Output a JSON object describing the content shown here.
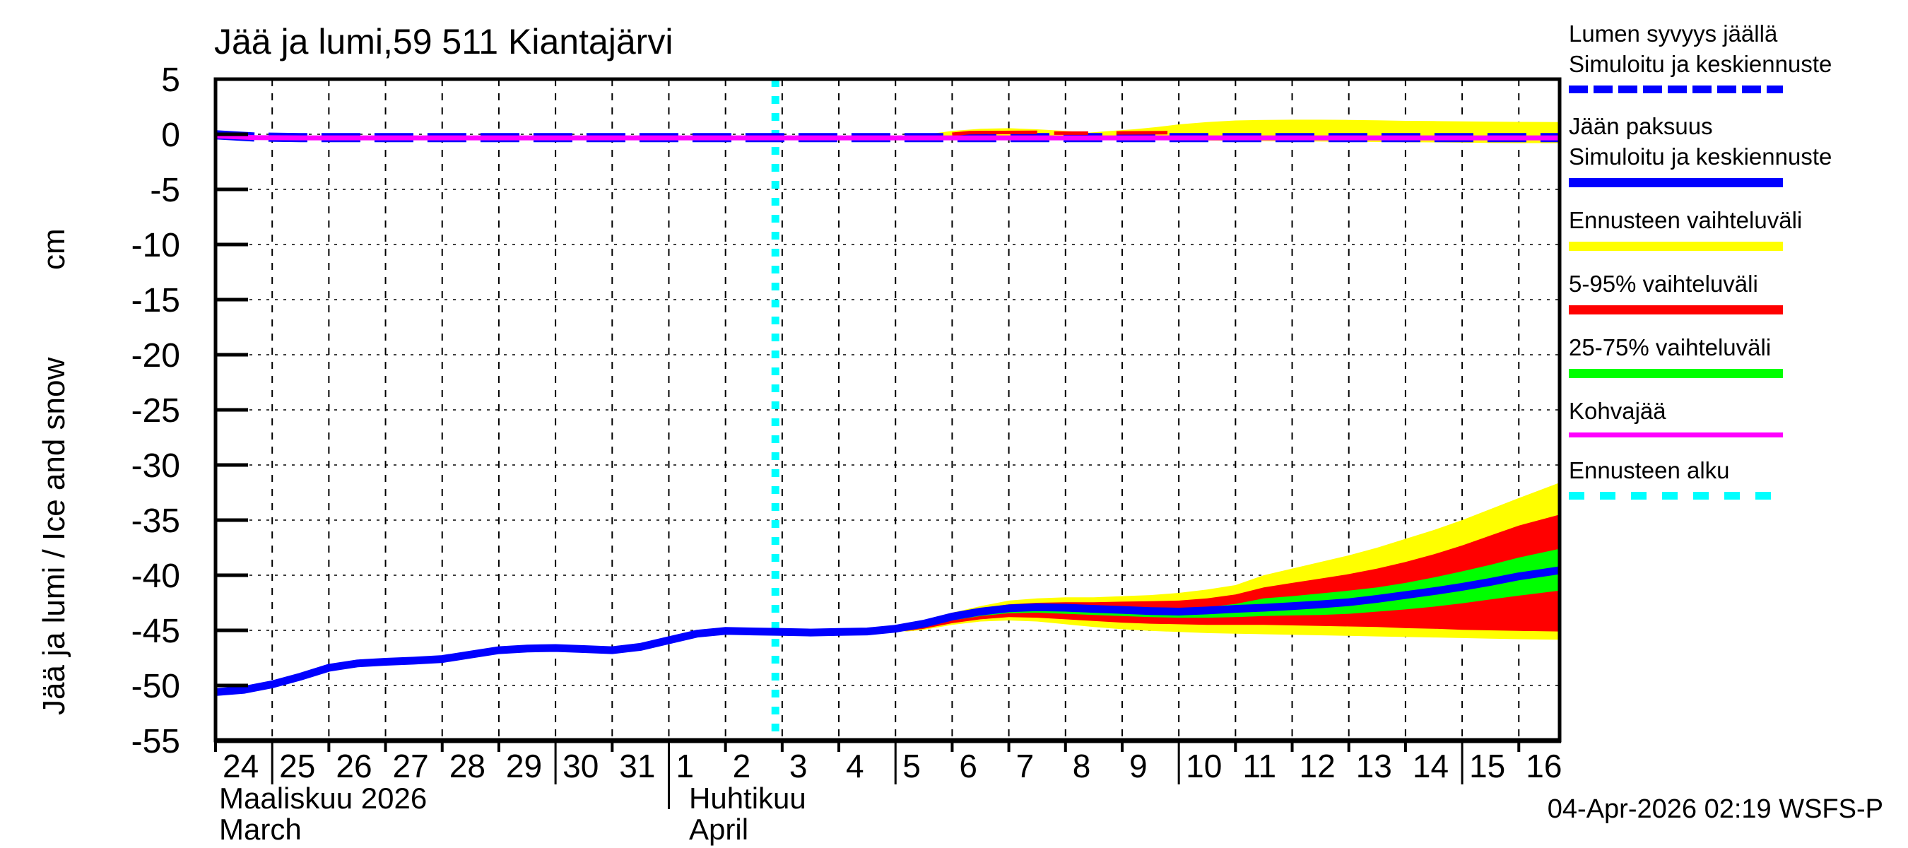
{
  "title": "Jää ja lumi,59 511 Kiantajärvi",
  "timestamp": "04-Apr-2026 02:19 WSFS-P",
  "legend": {
    "entries": [
      {
        "id": "snow-depth",
        "label1": "Lumen syvyys jäällä",
        "label2": "Simuloitu ja keskiennuste",
        "color": "#0000ff",
        "style": "dashed"
      },
      {
        "id": "ice-thickness",
        "label1": "Jään paksuus",
        "label2": "Simuloitu ja keskiennuste",
        "color": "#0000ff",
        "style": "solid"
      },
      {
        "id": "forecast-range",
        "label1": "Ennusteen vaihteluväli",
        "label2": "",
        "color": "#ffff00",
        "style": "solid"
      },
      {
        "id": "range-5-95",
        "label1": "5-95% vaihteluväli",
        "label2": "",
        "color": "#ff0000",
        "style": "solid"
      },
      {
        "id": "range-25-75",
        "label1": "25-75% vaihteluväli",
        "label2": "",
        "color": "#00ff00",
        "style": "solid"
      },
      {
        "id": "kohvajaa",
        "label1": "Kohvajää",
        "label2": "",
        "color": "#ff00ff",
        "style": "solid"
      },
      {
        "id": "forecast-start",
        "label1": "Ennusteen alku",
        "label2": "",
        "color": "#00ffff",
        "style": "dashed"
      }
    ]
  },
  "chart_data": {
    "type": "line",
    "title": "Jää ja lumi,59 511 Kiantajärvi",
    "ylabel": "Jää ja lumi / Ice and snow",
    "y_unit": "cm",
    "ylim": [
      -55,
      5
    ],
    "grid": true,
    "legend_position": "right-outside",
    "x_note": "x = days since 24 Mar 2026; axis spans 24 Mar 2026 to 16 Apr 2026 (+0.7 d)",
    "x_end": 23.72,
    "forecast_start_x": 9.88,
    "y_axis": {
      "label": "Jää ja lumi / Ice and snow",
      "unit": "cm",
      "ticks": [
        5,
        0,
        -5,
        -10,
        -15,
        -20,
        -25,
        -30,
        -35,
        -40,
        -45,
        -50,
        -55
      ]
    },
    "x_axis": {
      "day_labels": [
        "24",
        "25",
        "26",
        "27",
        "28",
        "29",
        "30",
        "31",
        "1",
        "2",
        "3",
        "4",
        "5",
        "6",
        "7",
        "8",
        "9",
        "10",
        "11",
        "12",
        "13",
        "14",
        "15",
        "16"
      ],
      "pentad_days": [
        1,
        6,
        12,
        17,
        22
      ],
      "month_separator_day": 8,
      "month1": {
        "fi": "Maaliskuu 2026",
        "en": "March"
      },
      "month2": {
        "fi": "Huhtikuu",
        "en": "April"
      }
    },
    "bands": [
      {
        "id": "ice-forecast-range",
        "name": "Ennusteen vaihteluväli (jään paksuus)",
        "color": "#ffff00",
        "x": [
          11.7,
          12.2,
          12.5,
          13,
          13.5,
          14,
          14.5,
          15,
          15.5,
          16,
          16.5,
          17,
          17.5,
          18,
          18.5,
          19,
          19.5,
          20,
          20.5,
          21,
          21.5,
          22,
          22.5,
          23,
          23.72
        ],
        "upper": [
          -44.9,
          -44.75,
          -44.2,
          -43.4,
          -42.8,
          -42.3,
          -42.1,
          -42.0,
          -42.0,
          -41.9,
          -41.8,
          -41.6,
          -41.3,
          -40.9,
          -40.0,
          -39.4,
          -38.8,
          -38.2,
          -37.5,
          -36.7,
          -35.9,
          -35.0,
          -34.0,
          -33.0,
          -31.6
        ],
        "lower": [
          -44.9,
          -45.1,
          -44.95,
          -44.5,
          -44.2,
          -44.1,
          -44.2,
          -44.45,
          -44.7,
          -44.9,
          -45.05,
          -45.15,
          -45.25,
          -45.3,
          -45.35,
          -45.4,
          -45.45,
          -45.5,
          -45.55,
          -45.6,
          -45.65,
          -45.7,
          -45.75,
          -45.8,
          -45.85
        ]
      },
      {
        "id": "ice-5-95",
        "name": "5-95% vaihteluväli (jään paksuus)",
        "color": "#ff0000",
        "x": [
          11.7,
          12.2,
          12.5,
          13,
          13.5,
          14,
          14.5,
          15,
          15.5,
          16,
          16.5,
          17,
          17.5,
          18,
          18.5,
          19,
          19.5,
          20,
          20.5,
          21,
          21.5,
          22,
          22.5,
          23,
          23.72
        ],
        "upper": [
          -44.9,
          -44.8,
          -44.3,
          -43.55,
          -43.0,
          -42.65,
          -42.5,
          -42.45,
          -42.45,
          -42.4,
          -42.35,
          -42.3,
          -42.1,
          -41.75,
          -41.1,
          -40.7,
          -40.3,
          -39.9,
          -39.4,
          -38.8,
          -38.1,
          -37.3,
          -36.4,
          -35.5,
          -34.5
        ],
        "lower": [
          -44.9,
          -45.05,
          -44.85,
          -44.35,
          -44.0,
          -43.8,
          -43.85,
          -44.0,
          -44.15,
          -44.3,
          -44.4,
          -44.45,
          -44.5,
          -44.5,
          -44.5,
          -44.55,
          -44.6,
          -44.65,
          -44.7,
          -44.8,
          -44.85,
          -44.95,
          -45.0,
          -45.05,
          -45.1
        ]
      },
      {
        "id": "ice-25-75",
        "name": "25-75% vaihteluväli (jään paksuus)",
        "color": "#00ff00",
        "x": [
          11.7,
          12.2,
          12.5,
          13,
          13.5,
          14,
          14.5,
          15,
          15.5,
          16,
          16.5,
          17,
          17.5,
          18,
          18.5,
          19,
          19.5,
          20,
          20.5,
          21,
          21.5,
          22,
          22.5,
          23,
          23.72
        ],
        "upper": [
          -44.9,
          -44.82,
          -44.4,
          -43.7,
          -43.25,
          -42.95,
          -42.82,
          -42.8,
          -42.88,
          -42.95,
          -43.0,
          -43.0,
          -42.9,
          -42.6,
          -42.1,
          -41.9,
          -41.65,
          -41.4,
          -41.1,
          -40.7,
          -40.2,
          -39.65,
          -39.05,
          -38.4,
          -37.6
        ],
        "lower": [
          -44.9,
          -45.0,
          -44.72,
          -44.1,
          -43.7,
          -43.45,
          -43.4,
          -43.5,
          -43.6,
          -43.7,
          -43.8,
          -43.85,
          -43.85,
          -43.8,
          -43.7,
          -43.65,
          -43.6,
          -43.5,
          -43.3,
          -43.1,
          -42.85,
          -42.55,
          -42.2,
          -41.85,
          -41.4
        ]
      },
      {
        "id": "snow-forecast-range",
        "name": "Ennusteen vaihteluväli (lumen syvyys)",
        "color": "#ffff00",
        "x": [
          11.7,
          12.5,
          13,
          13.5,
          14,
          14.5,
          15,
          15.4,
          15.8,
          16.2,
          16.6,
          17,
          17.5,
          18,
          18.5,
          19,
          19.5,
          20,
          20.5,
          21,
          21.5,
          22,
          22.5,
          23,
          23.72
        ],
        "upper": [
          -0.3,
          -0.05,
          0.3,
          0.5,
          0.55,
          0.45,
          0.3,
          0.15,
          0.3,
          0.45,
          0.65,
          0.9,
          1.1,
          1.25,
          1.3,
          1.32,
          1.32,
          1.3,
          1.27,
          1.22,
          1.2,
          1.17,
          1.15,
          1.12,
          1.1
        ],
        "lower": [
          -0.45,
          -0.5,
          -0.52,
          -0.52,
          -0.52,
          -0.52,
          -0.52,
          -0.52,
          -0.52,
          -0.52,
          -0.52,
          -0.55,
          -0.57,
          -0.6,
          -0.62,
          -0.64,
          -0.66,
          -0.68,
          -0.7,
          -0.72,
          -0.74,
          -0.76,
          -0.78,
          -0.8,
          -0.8
        ]
      }
    ],
    "series": [
      {
        "id": "ice-thickness",
        "name": "Jään paksuus - Simuloitu ja keskiennuste",
        "color": "#0000ff",
        "lw": 11,
        "dash": "",
        "x": [
          0,
          0.5,
          1,
          1.5,
          2,
          2.5,
          3,
          3.5,
          4,
          4.5,
          5,
          5.5,
          6,
          6.5,
          7,
          7.5,
          8,
          8.5,
          9,
          9.5,
          10,
          10.5,
          11,
          11.5,
          12,
          12.5,
          13,
          13.5,
          14,
          14.5,
          15,
          15.5,
          16,
          16.5,
          17,
          17.5,
          18,
          18.5,
          19,
          19.5,
          20,
          20.5,
          21,
          21.5,
          22,
          22.5,
          23,
          23.72
        ],
        "y": [
          -50.6,
          -50.4,
          -49.9,
          -49.2,
          -48.4,
          -48.0,
          -47.85,
          -47.75,
          -47.6,
          -47.2,
          -46.8,
          -46.65,
          -46.6,
          -46.7,
          -46.8,
          -46.5,
          -45.9,
          -45.3,
          -45.05,
          -45.1,
          -45.15,
          -45.2,
          -45.15,
          -45.1,
          -44.85,
          -44.4,
          -43.75,
          -43.3,
          -43.0,
          -42.9,
          -42.95,
          -43.05,
          -43.15,
          -43.25,
          -43.3,
          -43.2,
          -43.05,
          -42.95,
          -42.8,
          -42.65,
          -42.45,
          -42.15,
          -41.8,
          -41.45,
          -41.05,
          -40.6,
          -40.1,
          -39.55
        ]
      },
      {
        "id": "snow-depth",
        "name": "Lumen syvyys jäällä - Simuloitu ja keskiennuste",
        "color": "#0000ff",
        "lw": 13,
        "dash": "55 20",
        "x": [
          0,
          0.7,
          1.5,
          23.72
        ],
        "y": [
          -0.05,
          -0.25,
          -0.3,
          -0.3
        ]
      },
      {
        "id": "snow-5-95-a",
        "name": "5-95% vaihteluväli (lumi), osa 1",
        "color": "#ff0000",
        "lw": 5,
        "dash": "",
        "x": [
          13.0,
          13.3,
          14.5
        ],
        "y": [
          0.0,
          0.15,
          0.18
        ]
      },
      {
        "id": "snow-5-95-b",
        "name": "5-95% vaihteluväli (lumi), osa 2",
        "color": "#ff0000",
        "lw": 5,
        "dash": "",
        "x": [
          14.8,
          15.4
        ],
        "y": [
          0.1,
          0.1
        ]
      },
      {
        "id": "snow-5-95-c",
        "name": "5-95% vaihteluväli (lumi), osa 3",
        "color": "#ff0000",
        "lw": 5,
        "dash": "",
        "x": [
          15.9,
          16.8
        ],
        "y": [
          0.12,
          0.15
        ]
      },
      {
        "id": "kohvajaa",
        "name": "Kohvajää",
        "color": "#ff00ff",
        "lw": 7,
        "dash": "",
        "x": [
          0,
          0.7,
          1.5,
          23.72
        ],
        "y": [
          -0.15,
          -0.3,
          -0.33,
          -0.33
        ]
      }
    ],
    "colors": {
      "simulated_mean": "#0000ff",
      "forecast_range": "#ffff00",
      "range_5_95": "#ff0000",
      "range_25_75": "#00ff00",
      "kohvajaa": "#ff00ff",
      "forecast_start": "#00ffff",
      "axis": "#000000",
      "background": "#ffffff"
    }
  }
}
